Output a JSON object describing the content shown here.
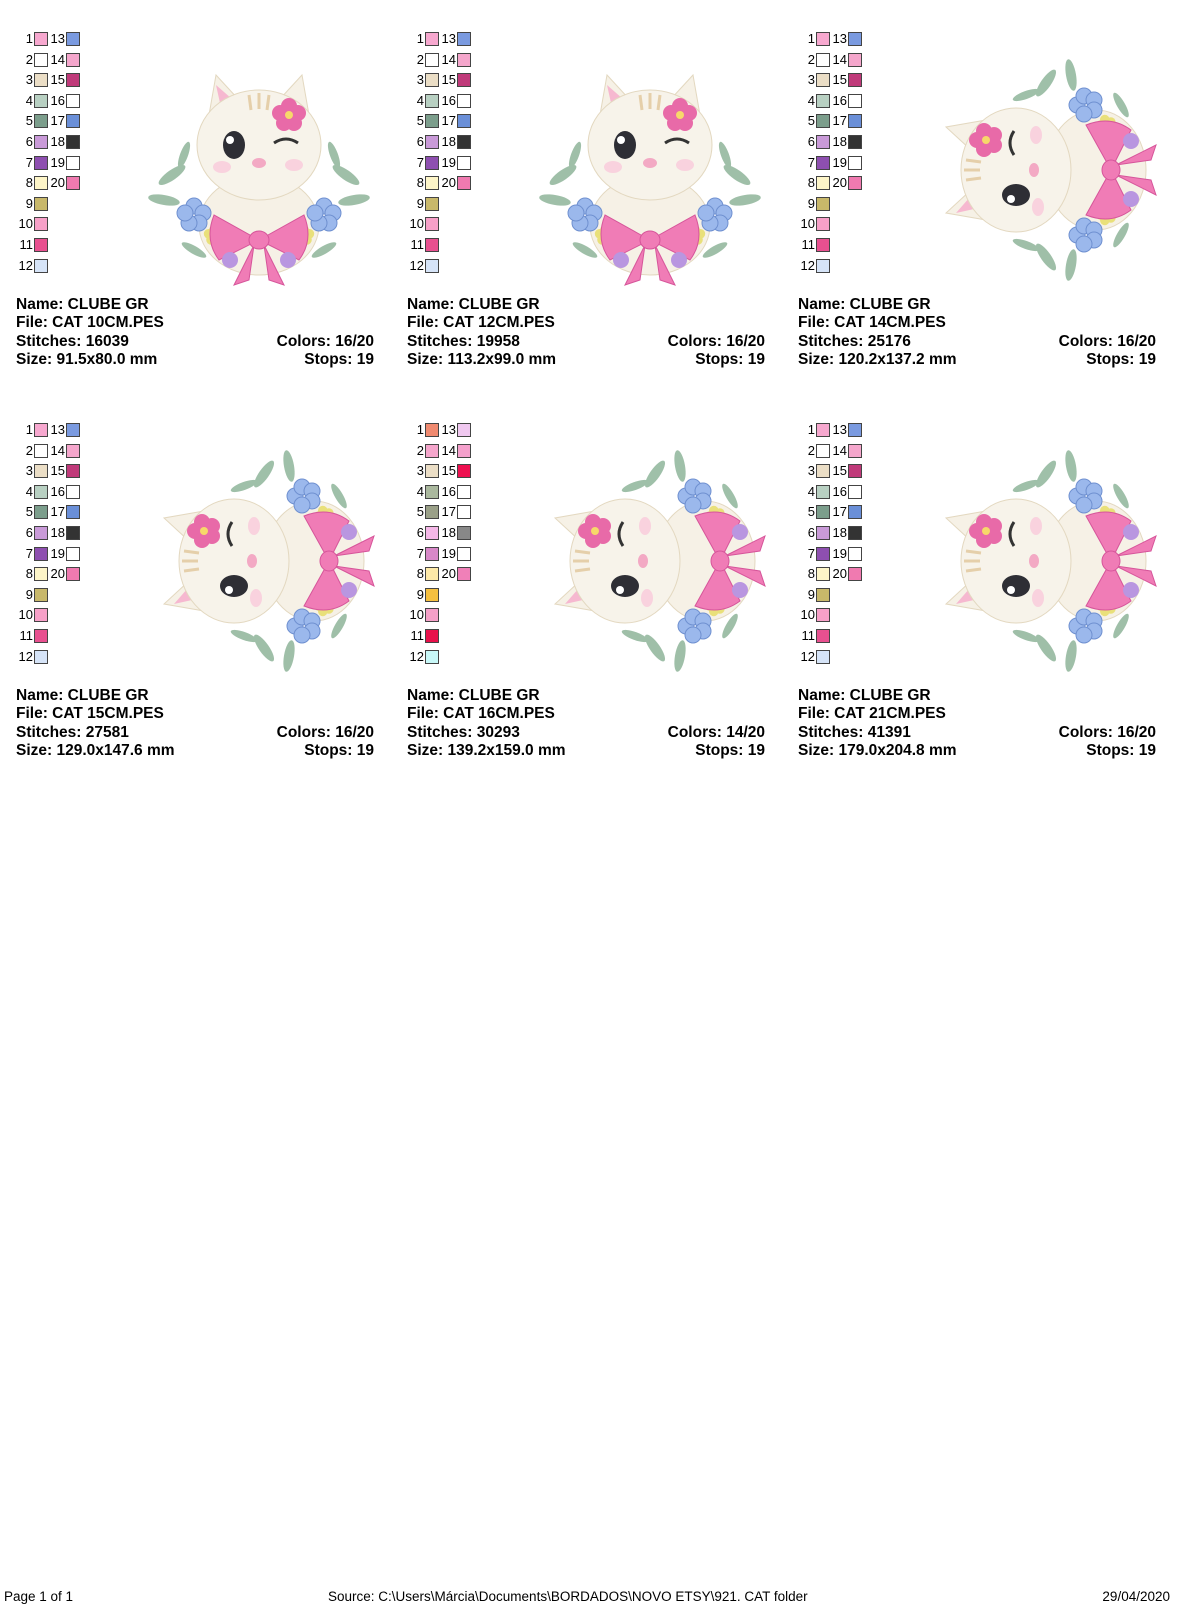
{
  "cards": [
    {
      "swatches": [
        {
          "number": "1",
          "color": "#f7a8cf"
        },
        {
          "number": "2",
          "color": "#ffffff"
        },
        {
          "number": "3",
          "color": "#ebdec6"
        },
        {
          "number": "4",
          "color": "#b8d0c2"
        },
        {
          "number": "5",
          "color": "#7c9e8c"
        },
        {
          "number": "6",
          "color": "#c99ad8"
        },
        {
          "number": "7",
          "color": "#8e4fb0"
        },
        {
          "number": "8",
          "color": "#fdf5c8"
        },
        {
          "number": "9",
          "color": "#c8b86a"
        },
        {
          "number": "10",
          "color": "#f7a0c8"
        },
        {
          "number": "11",
          "color": "#e8508f"
        },
        {
          "number": "12",
          "color": "#d6e4f8"
        },
        {
          "number": "13",
          "color": "#7a9ae0"
        },
        {
          "number": "14",
          "color": "#f5a6cc"
        },
        {
          "number": "15",
          "color": "#c03a7a"
        },
        {
          "number": "16",
          "color": "#ffffff"
        },
        {
          "number": "17",
          "color": "#6a8fd8"
        },
        {
          "number": "18",
          "color": "#333333"
        },
        {
          "number": "19",
          "color": "#ffffff"
        },
        {
          "number": "20",
          "color": "#f07ab0"
        }
      ],
      "name": "Name: CLUBE GR",
      "file": "File: CAT 10CM.PES",
      "stitches": "Stitches: 16039",
      "colors": "Colors: 16/20",
      "size": "Size: 91.5x80.0 mm",
      "stops": "Stops: 19"
    },
    {
      "swatches": [
        {
          "number": "1",
          "color": "#f7a8cf"
        },
        {
          "number": "2",
          "color": "#ffffff"
        },
        {
          "number": "3",
          "color": "#ebdec6"
        },
        {
          "number": "4",
          "color": "#b8d0c2"
        },
        {
          "number": "5",
          "color": "#7c9e8c"
        },
        {
          "number": "6",
          "color": "#c99ad8"
        },
        {
          "number": "7",
          "color": "#8e4fb0"
        },
        {
          "number": "8",
          "color": "#fdf5c8"
        },
        {
          "number": "9",
          "color": "#c8b86a"
        },
        {
          "number": "10",
          "color": "#f7a0c8"
        },
        {
          "number": "11",
          "color": "#e8508f"
        },
        {
          "number": "12",
          "color": "#d6e4f8"
        },
        {
          "number": "13",
          "color": "#7a9ae0"
        },
        {
          "number": "14",
          "color": "#f5a6cc"
        },
        {
          "number": "15",
          "color": "#c03a7a"
        },
        {
          "number": "16",
          "color": "#ffffff"
        },
        {
          "number": "17",
          "color": "#6a8fd8"
        },
        {
          "number": "18",
          "color": "#333333"
        },
        {
          "number": "19",
          "color": "#ffffff"
        },
        {
          "number": "20",
          "color": "#f07ab0"
        }
      ],
      "name": "Name: CLUBE GR",
      "file": "File: CAT 12CM.PES",
      "stitches": "Stitches: 19958",
      "colors": "Colors: 16/20",
      "size": "Size: 113.2x99.0 mm",
      "stops": "Stops: 19"
    },
    {
      "swatches": [
        {
          "number": "1",
          "color": "#f7a8cf"
        },
        {
          "number": "2",
          "color": "#ffffff"
        },
        {
          "number": "3",
          "color": "#ebdec6"
        },
        {
          "number": "4",
          "color": "#b8d0c2"
        },
        {
          "number": "5",
          "color": "#7c9e8c"
        },
        {
          "number": "6",
          "color": "#c99ad8"
        },
        {
          "number": "7",
          "color": "#8e4fb0"
        },
        {
          "number": "8",
          "color": "#fdf5c8"
        },
        {
          "number": "9",
          "color": "#c8b86a"
        },
        {
          "number": "10",
          "color": "#f7a0c8"
        },
        {
          "number": "11",
          "color": "#e8508f"
        },
        {
          "number": "12",
          "color": "#d6e4f8"
        },
        {
          "number": "13",
          "color": "#7a9ae0"
        },
        {
          "number": "14",
          "color": "#f5a6cc"
        },
        {
          "number": "15",
          "color": "#c03a7a"
        },
        {
          "number": "16",
          "color": "#ffffff"
        },
        {
          "number": "17",
          "color": "#6a8fd8"
        },
        {
          "number": "18",
          "color": "#333333"
        },
        {
          "number": "19",
          "color": "#ffffff"
        },
        {
          "number": "20",
          "color": "#f07ab0"
        }
      ],
      "name": "Name: CLUBE GR",
      "file": "File: CAT 14CM.PES",
      "stitches": "Stitches: 25176",
      "colors": "Colors: 16/20",
      "size": "Size: 120.2x137.2 mm",
      "stops": "Stops: 19"
    },
    {
      "swatches": [
        {
          "number": "1",
          "color": "#f7a8cf"
        },
        {
          "number": "2",
          "color": "#ffffff"
        },
        {
          "number": "3",
          "color": "#ebdec6"
        },
        {
          "number": "4",
          "color": "#b8d0c2"
        },
        {
          "number": "5",
          "color": "#7c9e8c"
        },
        {
          "number": "6",
          "color": "#c99ad8"
        },
        {
          "number": "7",
          "color": "#8e4fb0"
        },
        {
          "number": "8",
          "color": "#fdf5c8"
        },
        {
          "number": "9",
          "color": "#c8b86a"
        },
        {
          "number": "10",
          "color": "#f7a0c8"
        },
        {
          "number": "11",
          "color": "#e8508f"
        },
        {
          "number": "12",
          "color": "#d6e4f8"
        },
        {
          "number": "13",
          "color": "#7a9ae0"
        },
        {
          "number": "14",
          "color": "#f5a6cc"
        },
        {
          "number": "15",
          "color": "#c03a7a"
        },
        {
          "number": "16",
          "color": "#ffffff"
        },
        {
          "number": "17",
          "color": "#6a8fd8"
        },
        {
          "number": "18",
          "color": "#333333"
        },
        {
          "number": "19",
          "color": "#ffffff"
        },
        {
          "number": "20",
          "color": "#f07ab0"
        }
      ],
      "name": "Name: CLUBE GR",
      "file": "File: CAT 15CM.PES",
      "stitches": "Stitches: 27581",
      "colors": "Colors: 16/20",
      "size": "Size: 129.0x147.6 mm",
      "stops": "Stops: 19"
    },
    {
      "swatches": [
        {
          "number": "1",
          "color": "#f08a70"
        },
        {
          "number": "2",
          "color": "#f5a6cc"
        },
        {
          "number": "3",
          "color": "#ebdec6"
        },
        {
          "number": "4",
          "color": "#aab89e"
        },
        {
          "number": "5",
          "color": "#9aa088"
        },
        {
          "number": "6",
          "color": "#f5b8e8"
        },
        {
          "number": "7",
          "color": "#d888c8"
        },
        {
          "number": "8",
          "color": "#fde9a8"
        },
        {
          "number": "9",
          "color": "#f5c040"
        },
        {
          "number": "10",
          "color": "#f5a0c8"
        },
        {
          "number": "11",
          "color": "#e8104a"
        },
        {
          "number": "12",
          "color": "#c8f8f8"
        },
        {
          "number": "13",
          "color": "#f0c8f0"
        },
        {
          "number": "14",
          "color": "#f5a0cc"
        },
        {
          "number": "15",
          "color": "#ee1050"
        },
        {
          "number": "16",
          "color": "#ffffff"
        },
        {
          "number": "17",
          "color": "#ffffff"
        },
        {
          "number": "18",
          "color": "#888888"
        },
        {
          "number": "19",
          "color": "#ffffff"
        },
        {
          "number": "20",
          "color": "#f080b8"
        }
      ],
      "name": "Name: CLUBE GR",
      "file": "File: CAT 16CM.PES",
      "stitches": "Stitches: 30293",
      "colors": "Colors: 14/20",
      "size": "Size: 139.2x159.0 mm",
      "stops": "Stops: 19"
    },
    {
      "swatches": [
        {
          "number": "1",
          "color": "#f7a8cf"
        },
        {
          "number": "2",
          "color": "#ffffff"
        },
        {
          "number": "3",
          "color": "#ebdec6"
        },
        {
          "number": "4",
          "color": "#b8d0c2"
        },
        {
          "number": "5",
          "color": "#7c9e8c"
        },
        {
          "number": "6",
          "color": "#c99ad8"
        },
        {
          "number": "7",
          "color": "#8e4fb0"
        },
        {
          "number": "8",
          "color": "#fdf5c8"
        },
        {
          "number": "9",
          "color": "#c8b86a"
        },
        {
          "number": "10",
          "color": "#f7a0c8"
        },
        {
          "number": "11",
          "color": "#e8508f"
        },
        {
          "number": "12",
          "color": "#d6e4f8"
        },
        {
          "number": "13",
          "color": "#7a9ae0"
        },
        {
          "number": "14",
          "color": "#f5a6cc"
        },
        {
          "number": "15",
          "color": "#c03a7a"
        },
        {
          "number": "16",
          "color": "#ffffff"
        },
        {
          "number": "17",
          "color": "#6a8fd8"
        },
        {
          "number": "18",
          "color": "#333333"
        },
        {
          "number": "19",
          "color": "#ffffff"
        },
        {
          "number": "20",
          "color": "#f07ab0"
        }
      ],
      "name": "Name: CLUBE GR",
      "file": "File: CAT 21CM.PES",
      "stitches": "Stitches: 41391",
      "colors": "Colors: 16/20",
      "size": "Size: 179.0x204.8 mm",
      "stops": "Stops: 19"
    }
  ],
  "footer": {
    "page": "Page 1 of 1",
    "source": "Source: C:\\Users\\Márcia\\Documents\\BORDADOS\\NOVO ETSY\\921. CAT folder",
    "date": "29/04/2020"
  }
}
